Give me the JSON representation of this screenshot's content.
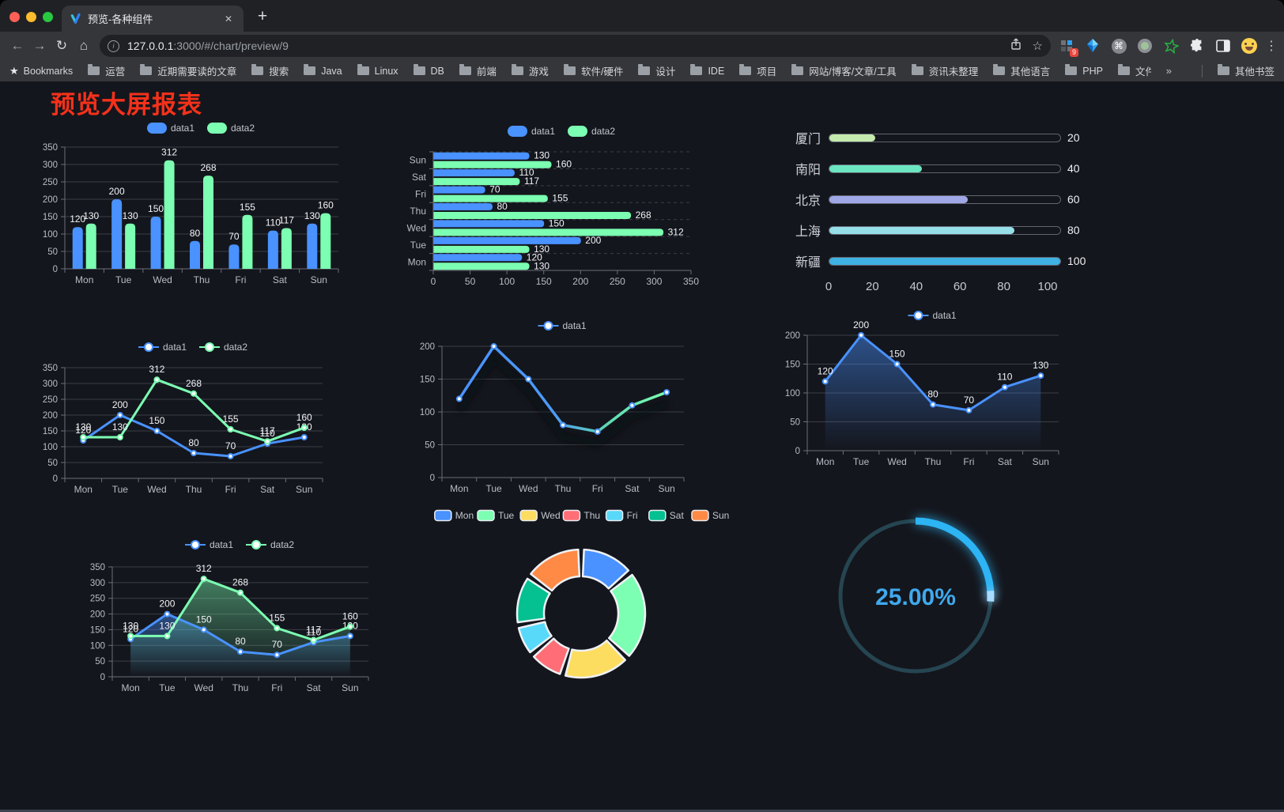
{
  "browser": {
    "tab_title": "预览-各种组件",
    "url_host": "127.0.0.1",
    "url_rest": ":3000/#/chart/preview/9",
    "extension_badge": "9",
    "bookmarks_label": "Bookmarks",
    "bookmark_folders": [
      "运营",
      "近期需要读的文章",
      "搜索",
      "Java",
      "Linux",
      "DB",
      "前端",
      "游戏",
      "软件/硬件",
      "设计",
      "IDE",
      "项目",
      "网站/博客/文章/工具",
      "资讯未整理",
      "其他语言",
      "PHP",
      "文件服务器"
    ],
    "overflow_chevron": "»",
    "other_bookmarks": "其他书签",
    "icons": {
      "back": "←",
      "forward": "→",
      "reload": "↻",
      "home": "⌂",
      "info": "i",
      "star": "☆",
      "tab_close": "✕",
      "new_tab": "+",
      "menu": "⋮",
      "command": "⌘"
    }
  },
  "page": {
    "title": "预览大屏报表",
    "title_color": "#f5311a",
    "background": "#14161d"
  },
  "chart_data": [
    {
      "id": "bar-grouped",
      "type": "bar",
      "categories": [
        "Mon",
        "Tue",
        "Wed",
        "Thu",
        "Fri",
        "Sat",
        "Sun"
      ],
      "series": [
        {
          "name": "data1",
          "color": "#4992ff",
          "values": [
            120,
            200,
            150,
            80,
            70,
            110,
            130
          ]
        },
        {
          "name": "data2",
          "color": "#7cffb2",
          "values": [
            130,
            130,
            312,
            268,
            155,
            117,
            160
          ]
        }
      ],
      "ylim": [
        0,
        350
      ],
      "ystep": 50,
      "legend_position": "top",
      "grid": true
    },
    {
      "id": "hbar-grouped",
      "type": "bar",
      "orientation": "horizontal",
      "categories": [
        "Sun",
        "Sat",
        "Fri",
        "Thu",
        "Wed",
        "Tue",
        "Mon"
      ],
      "series": [
        {
          "name": "data1",
          "color": "#4992ff",
          "values": [
            130,
            110,
            70,
            80,
            150,
            200,
            120
          ]
        },
        {
          "name": "data2",
          "color": "#7cffb2",
          "values": [
            160,
            117,
            155,
            268,
            312,
            130,
            130
          ]
        }
      ],
      "xlim": [
        0,
        350
      ],
      "xstep": 50,
      "legend_position": "top",
      "grid": true
    },
    {
      "id": "progress-bars",
      "type": "bar",
      "orientation": "horizontal-progress",
      "categories": [
        "厦门",
        "南阳",
        "北京",
        "上海",
        "新疆"
      ],
      "values": [
        20,
        40,
        60,
        80,
        100
      ],
      "colors": [
        "#c4ebad",
        "#6be6c1",
        "#a0a7e6",
        "#96dee8",
        "#3fb1e3"
      ],
      "xlim": [
        0,
        100
      ],
      "xticks": [
        0,
        20,
        40,
        60,
        80,
        100
      ]
    },
    {
      "id": "line-grouped",
      "type": "line",
      "categories": [
        "Mon",
        "Tue",
        "Wed",
        "Thu",
        "Fri",
        "Sat",
        "Sun"
      ],
      "series": [
        {
          "name": "data1",
          "color": "#4992ff",
          "values": [
            120,
            200,
            150,
            80,
            70,
            110,
            130
          ]
        },
        {
          "name": "data2",
          "color": "#7cffb2",
          "values": [
            130,
            130,
            312,
            268,
            155,
            117,
            160
          ]
        }
      ],
      "ylim": [
        0,
        350
      ],
      "ystep": 50,
      "point_labels": true,
      "legend_position": "top"
    },
    {
      "id": "line-gradient",
      "type": "line",
      "categories": [
        "Mon",
        "Tue",
        "Wed",
        "Thu",
        "Fri",
        "Sat",
        "Sun"
      ],
      "series": [
        {
          "name": "data1",
          "color": "#4992ff",
          "gradient": [
            "#4992ff",
            "#7cffb2"
          ],
          "values": [
            120,
            200,
            150,
            80,
            70,
            110,
            130
          ]
        }
      ],
      "ylim": [
        0,
        200
      ],
      "ystep": 50,
      "point_labels": false,
      "shadow": true,
      "legend_position": "top"
    },
    {
      "id": "area-single",
      "type": "area",
      "categories": [
        "Mon",
        "Tue",
        "Wed",
        "Thu",
        "Fri",
        "Sat",
        "Sun"
      ],
      "series": [
        {
          "name": "data1",
          "color": "#4992ff",
          "values": [
            120,
            200,
            150,
            80,
            70,
            110,
            130
          ]
        }
      ],
      "ylim": [
        0,
        200
      ],
      "ystep": 50,
      "point_labels": true,
      "legend_position": "top"
    },
    {
      "id": "area-grouped",
      "type": "area",
      "categories": [
        "Mon",
        "Tue",
        "Wed",
        "Thu",
        "Fri",
        "Sat",
        "Sun"
      ],
      "series": [
        {
          "name": "data1",
          "color": "#4992ff",
          "values": [
            120,
            200,
            150,
            80,
            70,
            110,
            130
          ]
        },
        {
          "name": "data2",
          "color": "#7cffb2",
          "values": [
            130,
            130,
            312,
            268,
            155,
            117,
            160
          ]
        }
      ],
      "ylim": [
        0,
        350
      ],
      "ystep": 50,
      "point_labels": true,
      "legend_position": "top"
    },
    {
      "id": "donut",
      "type": "pie",
      "categories": [
        "Mon",
        "Tue",
        "Wed",
        "Thu",
        "Fri",
        "Sat",
        "Sun"
      ],
      "values": [
        120,
        200,
        150,
        80,
        70,
        110,
        130
      ],
      "colors": [
        "#4992ff",
        "#7cffb2",
        "#fddd60",
        "#ff6e76",
        "#58d9f9",
        "#05c091",
        "#ff8a45"
      ],
      "inner_radius_ratio": 0.58,
      "legend_position": "top"
    },
    {
      "id": "gauge",
      "type": "gauge",
      "value": 25,
      "label": "25.00%",
      "color": "#2db4f4",
      "track_color": "#254551",
      "text_color": "#3fa9ed"
    }
  ]
}
